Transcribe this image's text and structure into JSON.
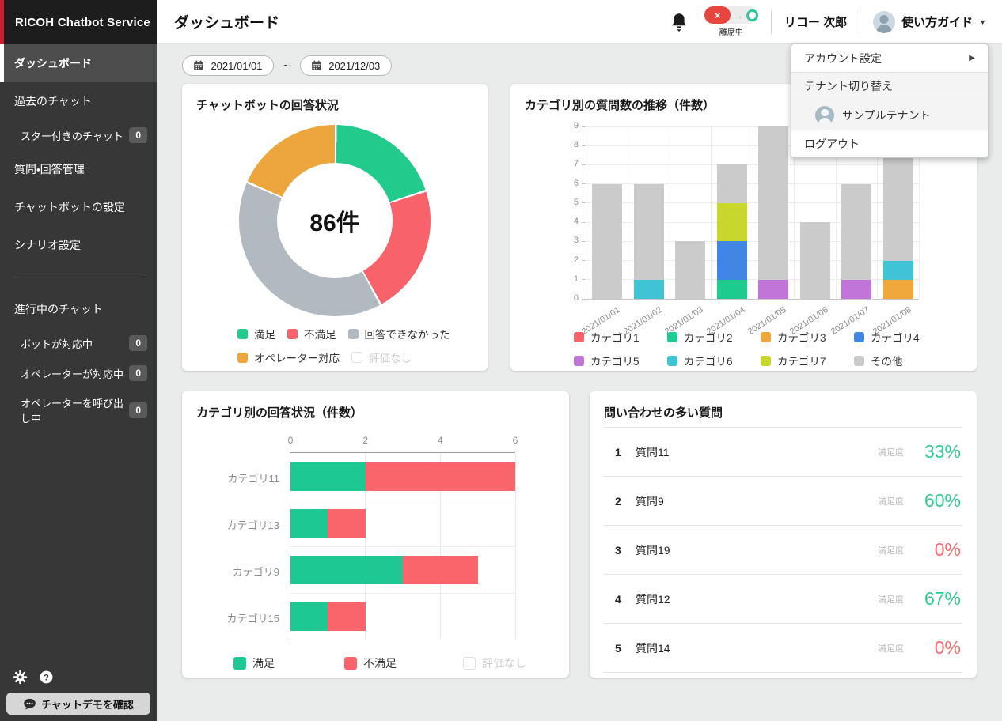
{
  "app": {
    "logo": "RICOH Chatbot Service"
  },
  "header": {
    "title": "ダッシュボード",
    "status": {
      "label": "離席中",
      "off_glyph": "×",
      "arrow": "→"
    },
    "user_name": "リコー 次郎",
    "guide": {
      "label": "使い方ガイド",
      "caret": "▼"
    }
  },
  "user_menu": {
    "items": [
      {
        "label": "アカウント設定",
        "type": "item",
        "arrow": "▶"
      },
      {
        "label": "テナント切り替え",
        "type": "group"
      },
      {
        "label": "サンプルテナント",
        "type": "tenant"
      },
      {
        "label": "ログアウト",
        "type": "item"
      }
    ]
  },
  "sidebar": {
    "items": [
      {
        "label": "ダッシュボード",
        "active": true
      },
      {
        "label": "過去のチャット"
      },
      {
        "label": "スター付きのチャット",
        "indent": true,
        "badge": "0"
      },
      {
        "label": "質問・回答管理"
      },
      {
        "label": "チャットボットの設定"
      },
      {
        "label": "シナリオ設定"
      },
      {
        "divider": true
      },
      {
        "label": "進行中のチャット",
        "section": true
      },
      {
        "label": "ボットが対応中",
        "indent": true,
        "badge": "0"
      },
      {
        "label": "オペレーターが対応中",
        "indent": true,
        "badge": "0"
      },
      {
        "label": "オペレーターを呼び出し中",
        "indent": true,
        "badge": "0"
      }
    ],
    "footer_button": "チャットデモを確認"
  },
  "filters": {
    "date_from": "2021/01/01",
    "separator": "~",
    "date_to": "2021/12/03"
  },
  "chart_data": [
    {
      "type": "pie",
      "title": "チャットボットの回答状況",
      "center_label": "86件",
      "total": 86,
      "slices": [
        {
          "label": "満足",
          "value": 17,
          "color": "#22ca8b"
        },
        {
          "label": "不満足",
          "value": 19,
          "color": "#f8626b"
        },
        {
          "label": "回答できなかった",
          "value": 34,
          "color": "#b1bac0"
        },
        {
          "label": "オペレーター対応",
          "value": 16,
          "color": "#eca63d"
        }
      ],
      "disabled_legend": "評価なし",
      "legend_rows": [
        3,
        1
      ]
    },
    {
      "type": "bar",
      "stacked": true,
      "title": "カテゴリ別の質問数の推移（件数）",
      "categories": [
        "2021/01/01",
        "2021/01/02",
        "2021/01/03",
        "2021/01/04",
        "2021/01/05",
        "2021/01/06",
        "2021/01/07",
        "2021/01/08"
      ],
      "ylim": [
        0,
        9
      ],
      "yticks": [
        0,
        1,
        2,
        3,
        4,
        5,
        6,
        7,
        8,
        9
      ],
      "grid": true,
      "legend_position": "bottom",
      "series": [
        {
          "name": "カテゴリ1",
          "color": "#f8626b",
          "values": [
            0,
            0,
            0,
            0,
            0,
            0,
            0,
            0
          ]
        },
        {
          "name": "カテゴリ2",
          "color": "#1ecb8f",
          "values": [
            0,
            0,
            0,
            1,
            0,
            0,
            0,
            0
          ]
        },
        {
          "name": "カテゴリ3",
          "color": "#f0a73c",
          "values": [
            0,
            0,
            0,
            0,
            0,
            0,
            0,
            1
          ]
        },
        {
          "name": "カテゴリ4",
          "color": "#4286e4",
          "values": [
            0,
            0,
            0,
            2,
            0,
            0,
            0,
            0
          ]
        },
        {
          "name": "カテゴリ5",
          "color": "#c175d8",
          "values": [
            0,
            0,
            0,
            0,
            1,
            0,
            1,
            0
          ]
        },
        {
          "name": "カテゴリ6",
          "color": "#3fc4d6",
          "values": [
            0,
            1,
            0,
            0,
            0,
            0,
            0,
            1
          ]
        },
        {
          "name": "カテゴリ7",
          "color": "#c9d62e",
          "values": [
            0,
            0,
            0,
            2,
            0,
            0,
            0,
            0
          ]
        },
        {
          "name": "その他",
          "color": "#cbcbcb",
          "values": [
            6,
            5,
            3,
            2,
            8,
            4,
            5,
            6
          ]
        }
      ]
    },
    {
      "type": "bar",
      "horizontal": true,
      "stacked": true,
      "title": "カテゴリ別の回答状況（件数）",
      "categories": [
        "カテゴリ11",
        "カテゴリ13",
        "カテゴリ9",
        "カテゴリ15"
      ],
      "xlim": [
        0,
        6
      ],
      "xticks": [
        0,
        2,
        4,
        6
      ],
      "grid": true,
      "series": [
        {
          "name": "満足",
          "color": "#1dc893",
          "values": [
            2,
            1,
            3,
            1
          ]
        },
        {
          "name": "不満足",
          "color": "#f9656a",
          "values": [
            4,
            1,
            2,
            1
          ]
        }
      ],
      "disabled_legend": "評価なし"
    },
    {
      "type": "table",
      "title": "問い合わせの多い質問",
      "rows": [
        {
          "rank": "1",
          "label": "質問11",
          "metric": "満足度",
          "value": "33%",
          "color": "#2fca8f"
        },
        {
          "rank": "2",
          "label": "質問9",
          "metric": "満足度",
          "value": "60%",
          "color": "#2fca8f"
        },
        {
          "rank": "3",
          "label": "質問19",
          "metric": "満足度",
          "value": "0%",
          "color": "#f9696d"
        },
        {
          "rank": "4",
          "label": "質問12",
          "metric": "満足度",
          "value": "67%",
          "color": "#2fca8f"
        },
        {
          "rank": "5",
          "label": "質問14",
          "metric": "満足度",
          "value": "0%",
          "color": "#f9696d"
        }
      ]
    }
  ]
}
